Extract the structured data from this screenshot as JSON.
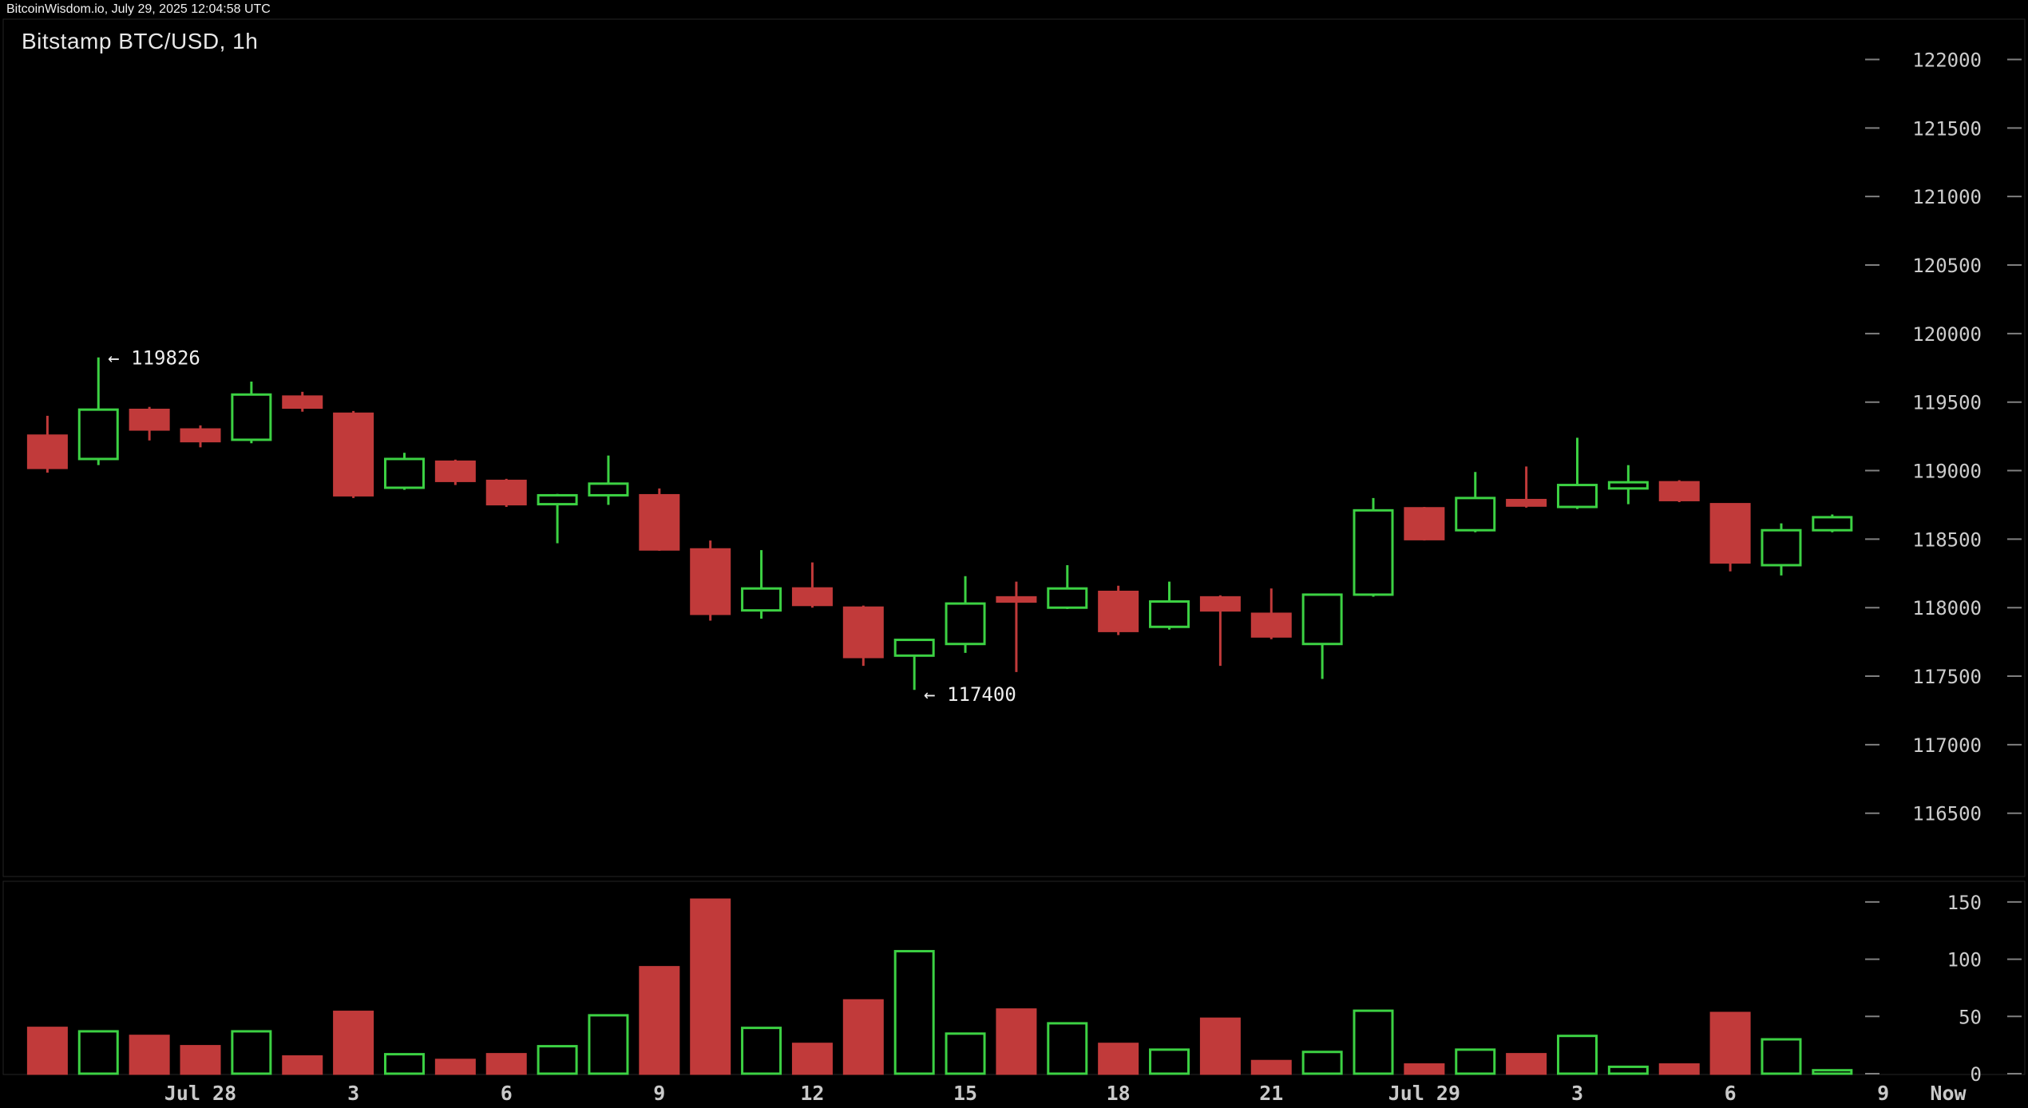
{
  "topbar": {
    "text": "BitcoinWisdom.io, July 29, 2025 12:04:58 UTC"
  },
  "chart": {
    "title": "Bitstamp BTC/USD, 1h"
  },
  "colors": {
    "up": "#3cd143",
    "down": "#c13a3a",
    "axis_text": "#cccccc",
    "x_label_text": "#c9c9c9",
    "tick_mark": "#808080",
    "annotation_text": "#eeeeee",
    "background": "#000000",
    "panel_border": "#242424",
    "title_text": "#e8e8e8"
  },
  "chart_data": {
    "type": "candlestick",
    "title": "Bitstamp BTC/USD, 1h",
    "exchange": "Bitstamp",
    "pair": "BTC/USD",
    "interval": "1h",
    "price_axis_side": "right",
    "price_axis_ticks": [
      122000,
      121500,
      121000,
      120500,
      120000,
      119500,
      119000,
      118500,
      118000,
      117500,
      117000,
      116500
    ],
    "volume_axis_ticks": [
      150,
      100,
      50,
      0
    ],
    "x_axis_labels": [
      {
        "text": "Jul 28",
        "hour": 0
      },
      {
        "text": "3",
        "hour": 3
      },
      {
        "text": "6",
        "hour": 6
      },
      {
        "text": "9",
        "hour": 9
      },
      {
        "text": "12",
        "hour": 12
      },
      {
        "text": "15",
        "hour": 15
      },
      {
        "text": "18",
        "hour": 18
      },
      {
        "text": "21",
        "hour": 21
      },
      {
        "text": "Jul 29",
        "hour": 24
      },
      {
        "text": "3",
        "hour": 27
      },
      {
        "text": "6",
        "hour": 30
      },
      {
        "text": "9",
        "hour": 33
      }
    ],
    "now_label": "Now",
    "annotations": [
      {
        "text": "← 119826",
        "price": 119826,
        "hour": -2,
        "anchor": "high"
      },
      {
        "text": "← 117400",
        "price": 117400,
        "hour": 14,
        "anchor": "low"
      }
    ],
    "candles": [
      {
        "time": "Jul 27 21:00",
        "hour": -3,
        "open": 119255,
        "high": 119400,
        "low": 118985,
        "close": 119020,
        "volume": 40
      },
      {
        "time": "Jul 27 22:00",
        "hour": -2,
        "open": 119085,
        "high": 119826,
        "low": 119040,
        "close": 119445,
        "volume": 37
      },
      {
        "time": "Jul 27 23:00",
        "hour": -1,
        "open": 119443,
        "high": 119465,
        "low": 119220,
        "close": 119300,
        "volume": 33
      },
      {
        "time": "Jul 28 00:00",
        "hour": 0,
        "open": 119300,
        "high": 119330,
        "low": 119170,
        "close": 119215,
        "volume": 24
      },
      {
        "time": "Jul 28 01:00",
        "hour": 1,
        "open": 119225,
        "high": 119650,
        "low": 119200,
        "close": 119555,
        "volume": 37
      },
      {
        "time": "Jul 28 02:00",
        "hour": 2,
        "open": 119540,
        "high": 119575,
        "low": 119430,
        "close": 119460,
        "volume": 15
      },
      {
        "time": "Jul 28 03:00",
        "hour": 3,
        "open": 119415,
        "high": 119435,
        "low": 118800,
        "close": 118820,
        "volume": 54
      },
      {
        "time": "Jul 28 04:00",
        "hour": 4,
        "open": 118875,
        "high": 119130,
        "low": 118860,
        "close": 119085,
        "volume": 17
      },
      {
        "time": "Jul 28 05:00",
        "hour": 5,
        "open": 119065,
        "high": 119080,
        "low": 118895,
        "close": 118925,
        "volume": 12
      },
      {
        "time": "Jul 28 06:00",
        "hour": 6,
        "open": 118925,
        "high": 118940,
        "low": 118735,
        "close": 118755,
        "volume": 17
      },
      {
        "time": "Jul 28 07:00",
        "hour": 7,
        "open": 118755,
        "high": 118830,
        "low": 118470,
        "close": 118820,
        "volume": 24
      },
      {
        "time": "Jul 28 08:00",
        "hour": 8,
        "open": 118820,
        "high": 119110,
        "low": 118750,
        "close": 118905,
        "volume": 51
      },
      {
        "time": "Jul 28 09:00",
        "hour": 9,
        "open": 118820,
        "high": 118870,
        "low": 118415,
        "close": 118425,
        "volume": 93
      },
      {
        "time": "Jul 28 10:00",
        "hour": 10,
        "open": 118425,
        "high": 118490,
        "low": 117905,
        "close": 117955,
        "volume": 152
      },
      {
        "time": "Jul 28 11:00",
        "hour": 11,
        "open": 117980,
        "high": 118420,
        "low": 117920,
        "close": 118140,
        "volume": 40
      },
      {
        "time": "Jul 28 12:00",
        "hour": 12,
        "open": 118140,
        "high": 118330,
        "low": 118000,
        "close": 118020,
        "volume": 26
      },
      {
        "time": "Jul 28 13:00",
        "hour": 13,
        "open": 118000,
        "high": 118015,
        "low": 117575,
        "close": 117640,
        "volume": 64
      },
      {
        "time": "Jul 28 14:00",
        "hour": 14,
        "open": 117650,
        "high": 117770,
        "low": 117400,
        "close": 117765,
        "volume": 107
      },
      {
        "time": "Jul 28 15:00",
        "hour": 15,
        "open": 117735,
        "high": 118230,
        "low": 117670,
        "close": 118030,
        "volume": 35
      },
      {
        "time": "Jul 28 16:00",
        "hour": 16,
        "open": 118075,
        "high": 118190,
        "low": 117530,
        "close": 118045,
        "volume": 56
      },
      {
        "time": "Jul 28 17:00",
        "hour": 17,
        "open": 118000,
        "high": 118310,
        "low": 117990,
        "close": 118140,
        "volume": 44
      },
      {
        "time": "Jul 28 18:00",
        "hour": 18,
        "open": 118115,
        "high": 118160,
        "low": 117800,
        "close": 117830,
        "volume": 26
      },
      {
        "time": "Jul 28 19:00",
        "hour": 19,
        "open": 117860,
        "high": 118190,
        "low": 117840,
        "close": 118045,
        "volume": 21
      },
      {
        "time": "Jul 28 20:00",
        "hour": 20,
        "open": 118075,
        "high": 118090,
        "low": 117575,
        "close": 117980,
        "volume": 48
      },
      {
        "time": "Jul 28 21:00",
        "hour": 21,
        "open": 117955,
        "high": 118140,
        "low": 117770,
        "close": 117790,
        "volume": 11
      },
      {
        "time": "Jul 28 22:00",
        "hour": 22,
        "open": 117735,
        "high": 118100,
        "low": 117480,
        "close": 118095,
        "volume": 19
      },
      {
        "time": "Jul 28 23:00",
        "hour": 23,
        "open": 118095,
        "high": 118800,
        "low": 118080,
        "close": 118710,
        "volume": 55
      },
      {
        "time": "Jul 29 00:00",
        "hour": 24,
        "open": 118725,
        "high": 118735,
        "low": 118490,
        "close": 118500,
        "volume": 8
      },
      {
        "time": "Jul 29 01:00",
        "hour": 25,
        "open": 118565,
        "high": 118990,
        "low": 118550,
        "close": 118800,
        "volume": 21
      },
      {
        "time": "Jul 29 02:00",
        "hour": 26,
        "open": 118785,
        "high": 119030,
        "low": 118730,
        "close": 118745,
        "volume": 17
      },
      {
        "time": "Jul 29 03:00",
        "hour": 27,
        "open": 118735,
        "high": 119240,
        "low": 118720,
        "close": 118895,
        "volume": 33
      },
      {
        "time": "Jul 29 04:00",
        "hour": 28,
        "open": 118870,
        "high": 119040,
        "low": 118755,
        "close": 118915,
        "volume": 6
      },
      {
        "time": "Jul 29 05:00",
        "hour": 29,
        "open": 118915,
        "high": 118930,
        "low": 118770,
        "close": 118785,
        "volume": 8
      },
      {
        "time": "Jul 29 06:00",
        "hour": 30,
        "open": 118755,
        "high": 118760,
        "low": 118265,
        "close": 118330,
        "volume": 53
      },
      {
        "time": "Jul 29 07:00",
        "hour": 31,
        "open": 118310,
        "high": 118615,
        "low": 118235,
        "close": 118565,
        "volume": 30
      },
      {
        "time": "Jul 29 08:00",
        "hour": 32,
        "open": 118565,
        "high": 118680,
        "low": 118550,
        "close": 118660,
        "volume": 3
      }
    ]
  }
}
